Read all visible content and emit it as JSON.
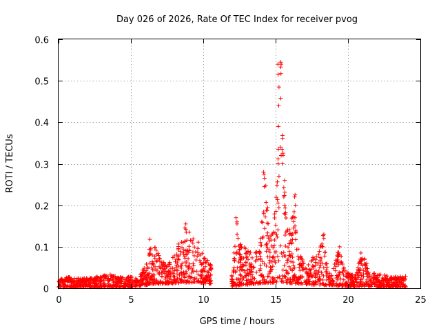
{
  "chart_data": {
    "type": "scatter",
    "title": "Day 026 of 2026, Rate Of TEC Index for receiver pvog",
    "xlabel": "GPS time / hours",
    "ylabel": "ROTI / TECUs",
    "xlim": [
      0,
      25
    ],
    "ylim": [
      0,
      0.6
    ],
    "xticks": [
      0,
      5,
      10,
      15,
      20,
      25
    ],
    "xtick_labels": [
      "0",
      "5",
      "10",
      "15",
      "20",
      "25"
    ],
    "yticks": [
      0,
      0.1,
      0.2,
      0.3,
      0.4,
      0.5,
      0.6
    ],
    "ytick_labels": [
      "0",
      "0.1",
      "0.2",
      "0.3",
      "0.4",
      "0.5",
      "0.6"
    ],
    "grid": true,
    "marker": "+",
    "series": [
      {
        "name": "ROTI",
        "color": "#ff0000",
        "envelope": {
          "description": "approximate upper envelope of the point cloud (hours, TECU)",
          "x": [
            0.0,
            0.5,
            1.0,
            2.0,
            3.0,
            3.5,
            4.0,
            4.5,
            5.0,
            5.5,
            6.0,
            6.3,
            6.5,
            6.8,
            7.0,
            7.5,
            8.0,
            8.5,
            8.8,
            9.0,
            9.3,
            9.6,
            10.0,
            10.5,
            12.0,
            12.3,
            12.6,
            13.0,
            13.5,
            14.0,
            14.3,
            14.6,
            15.0,
            15.2,
            15.35,
            15.5,
            15.7,
            16.0,
            16.3,
            16.5,
            17.0,
            17.5,
            18.0,
            18.3,
            18.6,
            19.0,
            19.4,
            19.7,
            20.0,
            20.5,
            21.0,
            21.5,
            22.0,
            23.0,
            24.0
          ],
          "y": [
            0.02,
            0.03,
            0.025,
            0.025,
            0.03,
            0.035,
            0.03,
            0.025,
            0.03,
            0.02,
            0.06,
            0.12,
            0.08,
            0.12,
            0.08,
            0.06,
            0.08,
            0.13,
            0.16,
            0.14,
            0.12,
            0.12,
            0.08,
            0.06,
            0.03,
            0.17,
            0.1,
            0.1,
            0.08,
            0.12,
            0.28,
            0.12,
            0.2,
            0.34,
            0.55,
            0.34,
            0.2,
            0.15,
            0.22,
            0.1,
            0.06,
            0.07,
            0.1,
            0.13,
            0.05,
            0.05,
            0.1,
            0.05,
            0.04,
            0.03,
            0.09,
            0.04,
            0.035,
            0.03,
            0.03
          ]
        },
        "baseline": {
          "description": "approximate floor of the point cloud (hours, TECU)",
          "x": [
            0.0,
            5.0,
            6.5,
            8.0,
            9.5,
            10.5,
            12.0,
            14.0,
            15.5,
            16.5,
            18.0,
            20.0,
            24.0
          ],
          "y": [
            0.003,
            0.003,
            0.01,
            0.012,
            0.015,
            0.01,
            0.005,
            0.012,
            0.015,
            0.01,
            0.008,
            0.005,
            0.003
          ]
        },
        "gaps": [
          [
            10.55,
            11.95
          ]
        ],
        "spikes": [
          {
            "x": 15.2,
            "y": [
              0.27,
              0.3,
              0.335,
              0.39,
              0.44,
              0.485,
              0.515,
              0.54
            ]
          },
          {
            "x": 15.35,
            "y": [
              0.32,
              0.34,
              0.54,
              0.545
            ]
          },
          {
            "x": 15.45,
            "y": [
              0.3,
              0.335
            ]
          },
          {
            "x": 14.2,
            "y": [
              0.18,
              0.245,
              0.265,
              0.275,
              0.28
            ]
          },
          {
            "x": 14.0,
            "y": [
              0.12,
              0.16
            ]
          },
          {
            "x": 15.6,
            "y": [
              0.18,
              0.2,
              0.22,
              0.26
            ]
          },
          {
            "x": 16.35,
            "y": [
              0.15,
              0.17,
              0.2,
              0.22,
              0.225
            ]
          },
          {
            "x": 12.3,
            "y": [
              0.13,
              0.155,
              0.17
            ]
          },
          {
            "x": 8.8,
            "y": [
              0.135,
              0.155
            ]
          },
          {
            "x": 18.3,
            "y": [
              0.1,
              0.12,
              0.13
            ]
          },
          {
            "x": 19.4,
            "y": [
              0.08,
              0.1
            ]
          },
          {
            "x": 20.9,
            "y": [
              0.07,
              0.085
            ]
          }
        ]
      }
    ]
  }
}
